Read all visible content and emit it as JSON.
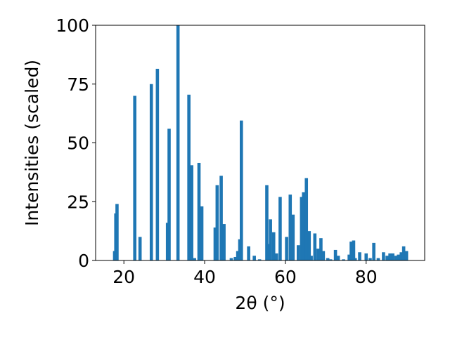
{
  "chart_data": {
    "type": "bar",
    "title": "",
    "xlabel": "2θ (°)",
    "ylabel": "Intensities (scaled)",
    "xlim": [
      13,
      94.5
    ],
    "ylim": [
      0,
      100
    ],
    "xticks": [
      20,
      40,
      60,
      80
    ],
    "yticks": [
      0,
      25,
      50,
      75,
      100
    ],
    "grid": false,
    "legend": "none",
    "bar_color": "#1f77b4",
    "bar_width": 0.8,
    "x": [
      17.7,
      18.0,
      18.3,
      22.7,
      24.0,
      26.8,
      28.3,
      30.8,
      31.2,
      33.4,
      36.1,
      36.8,
      37.5,
      38.6,
      39.3,
      42.6,
      43.1,
      44.1,
      44.8,
      46.6,
      47.6,
      48.2,
      48.7,
      49.1,
      50.9,
      52.3,
      53.6,
      55.4,
      55.8,
      56.3,
      57.1,
      57.8,
      58.7,
      60.3,
      61.2,
      61.9,
      63.2,
      64.0,
      64.5,
      65.2,
      65.9,
      66.4,
      67.3,
      68.1,
      68.8,
      69.4,
      70.5,
      71.2,
      72.4,
      73.1,
      74.4,
      75.8,
      76.3,
      76.9,
      77.3,
      78.4,
      80.0,
      81.0,
      81.9,
      83.0,
      84.3,
      85.2,
      85.9,
      86.6,
      87.4,
      88.0,
      88.7,
      89.3,
      90.0
    ],
    "values": [
      4,
      20,
      24,
      70,
      10,
      75,
      81.5,
      16,
      56,
      100,
      70.5,
      40.5,
      1,
      41.5,
      23,
      14,
      32,
      36,
      15.5,
      1,
      1.5,
      4,
      9,
      59.5,
      6,
      2,
      0.5,
      32,
      7,
      17.5,
      12,
      3,
      27,
      10,
      28,
      19.5,
      6.5,
      27,
      29,
      35,
      12.5,
      2,
      11.5,
      5,
      9.5,
      4,
      1,
      0.5,
      4.5,
      2,
      0.5,
      2.5,
      8,
      8.5,
      1,
      3.5,
      3,
      1,
      7.5,
      1,
      3.5,
      2,
      3,
      3,
      2,
      2.5,
      3.5,
      6,
      4
    ]
  }
}
